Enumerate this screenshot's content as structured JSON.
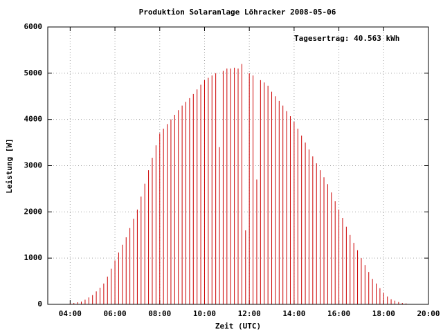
{
  "chart_data": {
    "type": "impulse",
    "title": "Produktion Solaranlage Löhracker 2008-05-06",
    "annotation": "Tagesertrag: 40.563 kWh",
    "x_label": "Zeit (UTC)",
    "y_label": "Leistung [W]",
    "grid": true,
    "color": "#cc0000",
    "xlim": [
      180,
      1200
    ],
    "xticks": [
      {
        "value": 240,
        "label": "04:00"
      },
      {
        "value": 360,
        "label": "06:00"
      },
      {
        "value": 480,
        "label": "08:00"
      },
      {
        "value": 600,
        "label": "10:00"
      },
      {
        "value": 720,
        "label": "12:00"
      },
      {
        "value": 840,
        "label": "14:00"
      },
      {
        "value": 960,
        "label": "16:00"
      },
      {
        "value": 1080,
        "label": "18:00"
      },
      {
        "value": 1200,
        "label": "20:00"
      }
    ],
    "ylim": [
      0,
      6000
    ],
    "yticks": [
      0,
      1000,
      2000,
      3000,
      4000,
      5000,
      6000
    ],
    "x": [
      240,
      250,
      260,
      270,
      280,
      290,
      300,
      310,
      320,
      330,
      340,
      350,
      360,
      370,
      380,
      390,
      400,
      410,
      420,
      430,
      440,
      450,
      460,
      470,
      480,
      490,
      500,
      510,
      520,
      530,
      540,
      550,
      560,
      570,
      580,
      590,
      600,
      610,
      620,
      630,
      640,
      650,
      660,
      670,
      680,
      690,
      700,
      710,
      720,
      730,
      740,
      750,
      760,
      770,
      780,
      790,
      800,
      810,
      820,
      830,
      840,
      850,
      860,
      870,
      880,
      890,
      900,
      910,
      920,
      930,
      940,
      950,
      960,
      970,
      980,
      990,
      1000,
      1010,
      1020,
      1030,
      1040,
      1050,
      1060,
      1070,
      1080,
      1090,
      1100,
      1110,
      1120,
      1130,
      1140
    ],
    "values": [
      20,
      30,
      45,
      60,
      100,
      150,
      200,
      280,
      360,
      450,
      600,
      770,
      950,
      1120,
      1290,
      1450,
      1650,
      1850,
      2050,
      2330,
      2610,
      2900,
      3170,
      3440,
      3700,
      3800,
      3900,
      4000,
      4100,
      4200,
      4300,
      4380,
      4460,
      4550,
      4650,
      4750,
      4850,
      4900,
      4950,
      5000,
      3400,
      5050,
      5100,
      5100,
      5120,
      5100,
      5200,
      1600,
      5000,
      4950,
      2700,
      4850,
      4800,
      4730,
      4600,
      4500,
      4400,
      4300,
      4180,
      4070,
      3950,
      3800,
      3650,
      3500,
      3350,
      3200,
      3050,
      2900,
      2750,
      2600,
      2420,
      2230,
      2050,
      1870,
      1680,
      1500,
      1330,
      1170,
      1000,
      850,
      700,
      550,
      450,
      350,
      250,
      170,
      110,
      80,
      50,
      30,
      20
    ]
  }
}
